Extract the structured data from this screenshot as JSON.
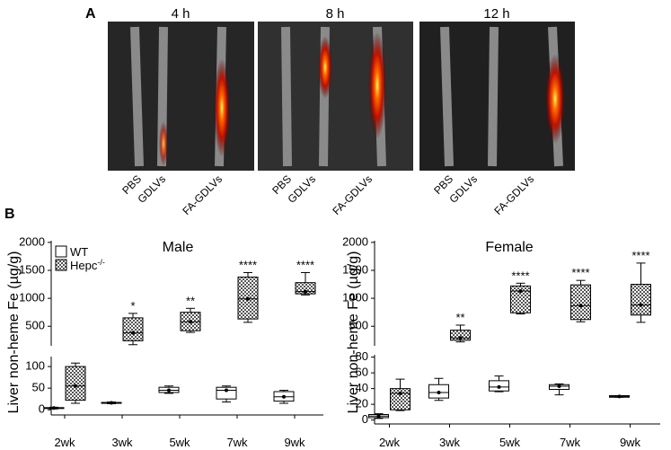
{
  "panel_a": {
    "label": "A",
    "times": [
      "4 h",
      "8 h",
      "12 h"
    ],
    "samples": [
      "PBS",
      "GDLVs",
      "FA-GDLVs"
    ]
  },
  "panel_b_label": "B",
  "y_label": "Liver non-heme Fe (µg/g)",
  "chart_data": [
    {
      "type": "box",
      "title": "Male",
      "categories": [
        "2wk",
        "3wk",
        "5wk",
        "7wk",
        "9wk"
      ],
      "ylim": [
        -12,
        123
      ],
      "yticks": [
        0,
        50,
        100
      ],
      "ylim_upper": [
        150,
        2030
      ],
      "yticks_upper": [
        500,
        1000,
        1500,
        2000
      ],
      "series": [
        {
          "name": "WT",
          "color": "#ffffff",
          "values": [
            [
              2,
              3,
              4,
              5,
              6
            ],
            [
              14,
              15,
              16,
              17,
              18
            ],
            [
              38,
              40,
              45,
              52,
              55
            ],
            [
              18,
              25,
              45,
              52,
              55
            ],
            [
              15,
              20,
              30,
              42,
              45
            ]
          ]
        },
        {
          "name": "Hepc",
          "name_sup": "-/-",
          "color": "checkered",
          "values": [
            [
              15,
              22,
              55,
              100,
              108
            ],
            [
              170,
              240,
              380,
              650,
              730
            ],
            [
              390,
              420,
              580,
              750,
              820
            ],
            [
              570,
              630,
              990,
              1380,
              1460
            ],
            [
              1060,
              1080,
              1120,
              1280,
              1460
            ]
          ]
        }
      ],
      "annotations": [
        null,
        "*",
        "**",
        "****",
        "****"
      ]
    },
    {
      "type": "box",
      "title": "Female",
      "categories": [
        "2wk",
        "3wk",
        "5wk",
        "7wk",
        "9wk"
      ],
      "ylim": [
        -5,
        83
      ],
      "yticks": [
        0,
        20,
        40,
        60,
        80
      ],
      "ylim_upper": [
        150,
        2030
      ],
      "yticks_upper": [
        500,
        1000,
        1500,
        2000
      ],
      "series": [
        {
          "name": "WT",
          "color": "#ffffff",
          "values": [
            [
              2,
              3,
              5,
              7,
              8
            ],
            [
              25,
              28,
              35,
              45,
              53
            ],
            [
              36,
              37,
              42,
              50,
              56
            ],
            [
              32,
              39,
              43,
              45,
              46
            ],
            [
              29,
              29,
              30,
              31,
              31
            ]
          ]
        },
        {
          "name": "Hepc",
          "name_sup": "-/-",
          "color": "checkered",
          "values": [
            [
              12,
              13,
              34,
              40,
              52
            ],
            [
              220,
              250,
              290,
              430,
              520
            ],
            [
              720,
              740,
              1130,
              1220,
              1270
            ],
            [
              580,
              620,
              870,
              1240,
              1320
            ],
            [
              570,
              700,
              880,
              1250,
              1630
            ]
          ]
        }
      ],
      "annotations": [
        null,
        "**",
        "****",
        "****",
        "****"
      ]
    }
  ]
}
